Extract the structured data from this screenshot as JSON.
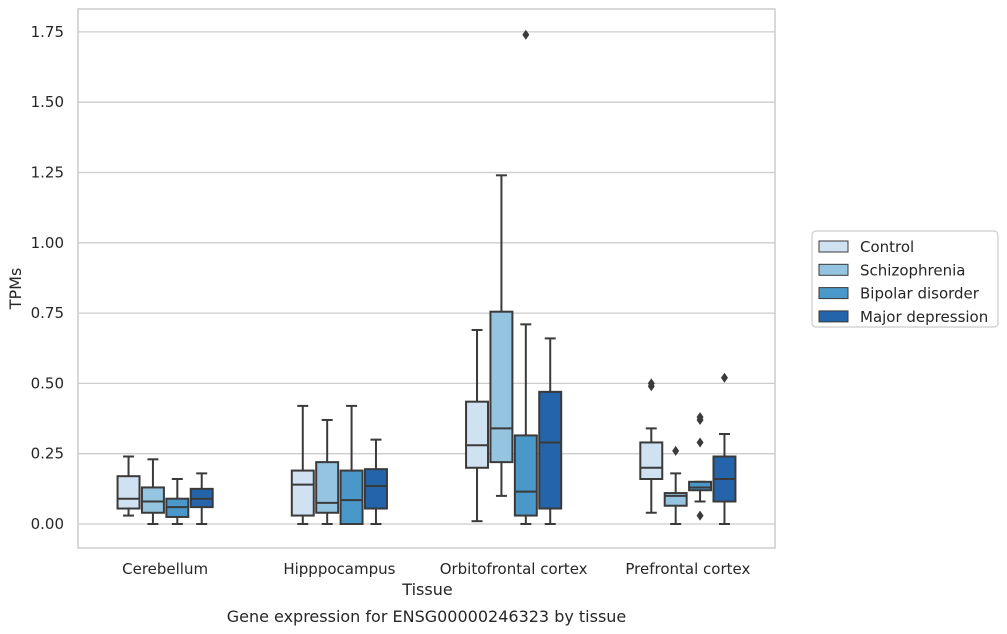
{
  "chart_data": {
    "type": "box",
    "title": "",
    "caption": "Gene expression for ENSG00000246323 by tissue",
    "xlabel": "Tissue",
    "ylabel": "TPMs",
    "ylim": [
      -0.085,
      1.83
    ],
    "yticks": [
      0.0,
      0.25,
      0.5,
      0.75,
      1.0,
      1.25,
      1.5,
      1.75
    ],
    "ytick_labels": [
      "0.00",
      "0.25",
      "0.50",
      "0.75",
      "1.00",
      "1.25",
      "1.50",
      "1.75"
    ],
    "grid": "horizontal",
    "legend_position": "right",
    "categories": [
      "Cerebellum",
      "Hipppocampus",
      "Orbitofrontal cortex",
      "Prefrontal cortex"
    ],
    "series": [
      {
        "name": "Control",
        "color": "#d0e1f2",
        "boxes": [
          {
            "whislo": 0.03,
            "q1": 0.055,
            "med": 0.09,
            "q3": 0.17,
            "whishi": 0.24,
            "fliers": []
          },
          {
            "whislo": 0.0,
            "q1": 0.03,
            "med": 0.14,
            "q3": 0.19,
            "whishi": 0.42,
            "fliers": []
          },
          {
            "whislo": 0.01,
            "q1": 0.2,
            "med": 0.28,
            "q3": 0.435,
            "whishi": 0.69,
            "fliers": []
          },
          {
            "whislo": 0.04,
            "q1": 0.16,
            "med": 0.2,
            "q3": 0.29,
            "whishi": 0.34,
            "fliers": [
              0.49,
              0.5
            ]
          }
        ]
      },
      {
        "name": "Schizophrenia",
        "color": "#94c4df",
        "boxes": [
          {
            "whislo": 0.0,
            "q1": 0.04,
            "med": 0.08,
            "q3": 0.13,
            "whishi": 0.23,
            "fliers": []
          },
          {
            "whislo": 0.0,
            "q1": 0.04,
            "med": 0.075,
            "q3": 0.22,
            "whishi": 0.37,
            "fliers": []
          },
          {
            "whislo": 0.1,
            "q1": 0.22,
            "med": 0.34,
            "q3": 0.755,
            "whishi": 1.24,
            "fliers": []
          },
          {
            "whislo": 0.0,
            "q1": 0.065,
            "med": 0.1,
            "q3": 0.11,
            "whishi": 0.18,
            "fliers": [
              0.26
            ]
          }
        ]
      },
      {
        "name": "Bipolar disorder",
        "color": "#4a98c9",
        "boxes": [
          {
            "whislo": 0.0,
            "q1": 0.025,
            "med": 0.06,
            "q3": 0.09,
            "whishi": 0.16,
            "fliers": []
          },
          {
            "whislo": 0.0,
            "q1": 0.0,
            "med": 0.085,
            "q3": 0.19,
            "whishi": 0.42,
            "fliers": []
          },
          {
            "whislo": 0.0,
            "q1": 0.03,
            "med": 0.115,
            "q3": 0.315,
            "whishi": 0.71,
            "fliers": [
              1.74
            ]
          },
          {
            "whislo": 0.08,
            "q1": 0.12,
            "med": 0.13,
            "q3": 0.15,
            "whishi": 0.15,
            "fliers": [
              0.03,
              0.29,
              0.37,
              0.38
            ]
          }
        ]
      },
      {
        "name": "Major depression",
        "color": "#2464ab",
        "boxes": [
          {
            "whislo": 0.0,
            "q1": 0.06,
            "med": 0.09,
            "q3": 0.125,
            "whishi": 0.18,
            "fliers": []
          },
          {
            "whislo": 0.0,
            "q1": 0.055,
            "med": 0.135,
            "q3": 0.195,
            "whishi": 0.3,
            "fliers": []
          },
          {
            "whislo": 0.0,
            "q1": 0.055,
            "med": 0.29,
            "q3": 0.47,
            "whishi": 0.66,
            "fliers": []
          },
          {
            "whislo": 0.0,
            "q1": 0.08,
            "med": 0.16,
            "q3": 0.24,
            "whishi": 0.32,
            "fliers": [
              0.52
            ]
          }
        ]
      }
    ]
  }
}
